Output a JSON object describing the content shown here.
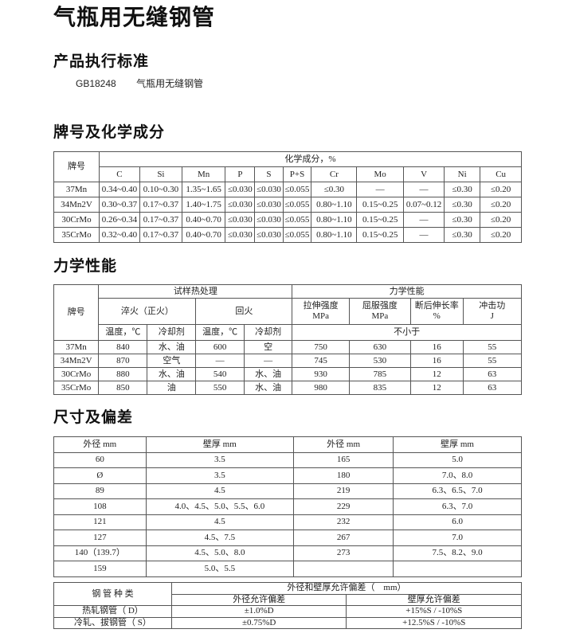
{
  "title": "气瓶用无缝钢管",
  "sections": {
    "standard": "产品执行标准",
    "chemistry": "牌号及化学成分",
    "mechanical": "力学性能",
    "dimensions": "尺寸及偏差"
  },
  "standard": {
    "code": "GB18248",
    "name": "气瓶用无缝钢管"
  },
  "chem_table": {
    "grade_header": "牌号",
    "group_header": "化学成分，%",
    "elements": [
      "C",
      "Si",
      "Mn",
      "P",
      "S",
      "P+S",
      "Cr",
      "Mo",
      "V",
      "Ni",
      "Cu"
    ],
    "rows": [
      [
        "37Mn",
        "0.34~0.40",
        "0.10~0.30",
        "1.35~1.65",
        "≤0.030",
        "≤0.030",
        "≤0.055",
        "≤0.30",
        "—",
        "—",
        "≤0.30",
        "≤0.20"
      ],
      [
        "34Mn2V",
        "0.30~0.37",
        "0.17~0.37",
        "1.40~1.75",
        "≤0.030",
        "≤0.030",
        "≤0.055",
        "0.80~1.10",
        "0.15~0.25",
        "0.07~0.12",
        "≤0.30",
        "≤0.20"
      ],
      [
        "30CrMo",
        "0.26~0.34",
        "0.17~0.37",
        "0.40~0.70",
        "≤0.030",
        "≤0.030",
        "≤0.055",
        "0.80~1.10",
        "0.15~0.25",
        "—",
        "≤0.30",
        "≤0.20"
      ],
      [
        "35CrMo",
        "0.32~0.40",
        "0.17~0.37",
        "0.40~0.70",
        "≤0.030",
        "≤0.030",
        "≤0.055",
        "0.80~1.10",
        "0.15~0.25",
        "—",
        "≤0.30",
        "≤0.20"
      ]
    ]
  },
  "mech_table": {
    "grade_header": "牌号",
    "heat_treatment": "试样热处理",
    "properties": "力学性能",
    "quench": "淬火（正火）",
    "temper": "回火",
    "tensile": [
      "拉伸强度",
      "MPa"
    ],
    "yield": [
      "屈服强度",
      "MPa"
    ],
    "elongation": [
      "断后伸长率",
      "%"
    ],
    "impact": [
      "冲击功",
      "J"
    ],
    "temp": "温度，℃",
    "coolant": "冷却剂",
    "min_note": "不小于",
    "rows": [
      [
        "37Mn",
        "840",
        "水、油",
        "600",
        "空",
        "750",
        "630",
        "16",
        "55"
      ],
      [
        "34Mn2V",
        "870",
        "空气",
        "—",
        "—",
        "745",
        "530",
        "16",
        "55"
      ],
      [
        "30CrMo",
        "880",
        "水、油",
        "540",
        "水、油",
        "930",
        "785",
        "12",
        "63"
      ],
      [
        "35CrMo",
        "850",
        "油",
        "550",
        "水、油",
        "980",
        "835",
        "12",
        "63"
      ]
    ]
  },
  "size_table": {
    "headers": [
      "外径 mm",
      "壁厚 mm",
      "外径 mm",
      "壁厚 mm"
    ],
    "rows": [
      [
        "60",
        "3.5",
        "165",
        "5.0"
      ],
      [
        "Ø",
        "3.5",
        "180",
        "7.0、8.0"
      ],
      [
        "89",
        "4.5",
        "219",
        "6.3、6.5、7.0"
      ],
      [
        "108",
        "4.0、4.5、5.0、5.5、6.0",
        "229",
        "6.3、7.0"
      ],
      [
        "121",
        "4.5",
        "232",
        "6.0"
      ],
      [
        "127",
        "4.5、7.5",
        "267",
        "7.0"
      ],
      [
        "140（139.7）",
        "4.5、5.0、8.0",
        "273",
        "7.5、8.2、9.0"
      ],
      [
        "159",
        "5.0、5.5",
        "",
        ""
      ]
    ]
  },
  "tolerance_table": {
    "type_header": "钢 管 种 类",
    "group_header": "外径和壁厚允许偏差（　mm）",
    "od_header": "外径允许偏差",
    "wall_header": "壁厚允许偏差",
    "rows": [
      [
        "热轧钢管（ D）",
        "±1.0%D",
        "+15%S / -10%S"
      ],
      [
        "冷轧、拔钢管（ S）",
        "±0.75%D",
        "+12.5%S / -10%S"
      ]
    ]
  }
}
